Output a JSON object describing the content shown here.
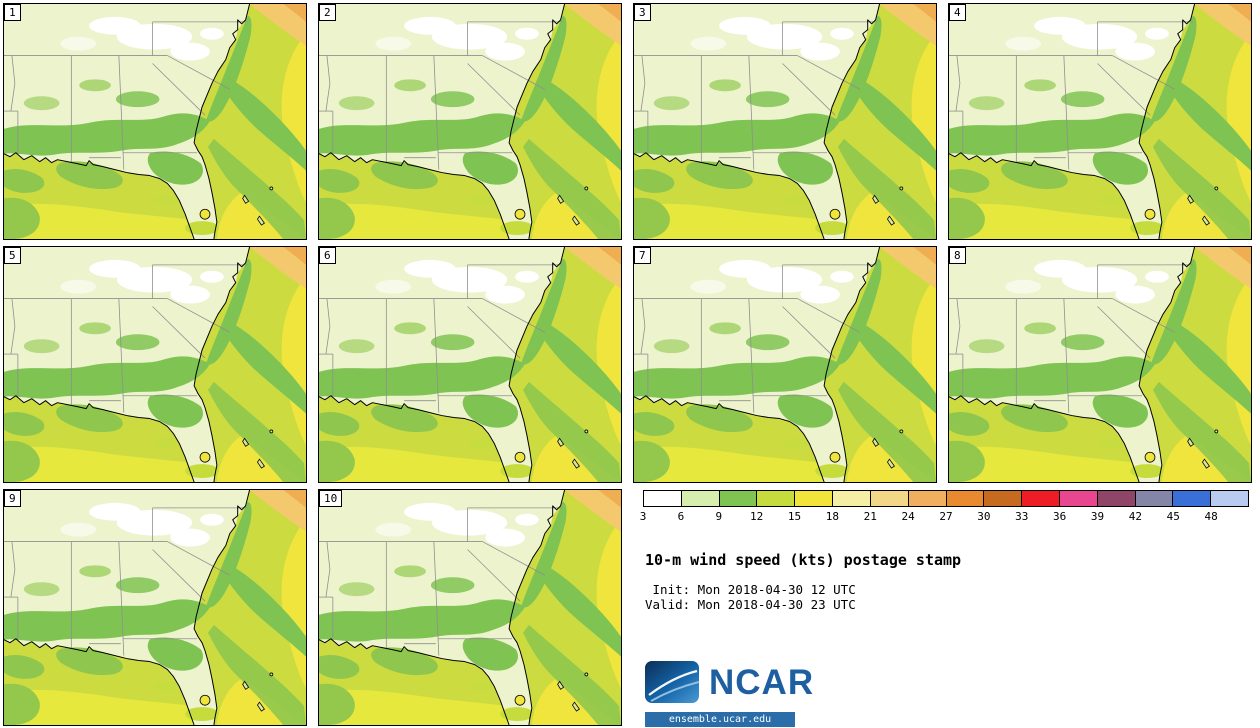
{
  "panels": [
    "1",
    "2",
    "3",
    "4",
    "5",
    "6",
    "7",
    "8",
    "9",
    "10"
  ],
  "legend": {
    "colorbar": {
      "ticks": [
        "3",
        "6",
        "9",
        "12",
        "15",
        "18",
        "21",
        "24",
        "27",
        "30",
        "33",
        "36",
        "39",
        "42",
        "45",
        "48"
      ],
      "colors": [
        "#ffffff",
        "#d6efaf",
        "#7fc353",
        "#c6dc3d",
        "#f1e53c",
        "#f5efa6",
        "#f2d788",
        "#f0af5f",
        "#ea8a30",
        "#c56a1e",
        "#ee1c25",
        "#e8468f",
        "#8e4568",
        "#8585a8",
        "#3a6fd8",
        "#b9ccf0"
      ],
      "units": "kts"
    },
    "title": "10-m wind speed (kts) postage stamp",
    "init_line": " Init: Mon 2018-04-30 12 UTC",
    "valid_line": "Valid: Mon 2018-04-30 23 UTC",
    "logo_text": "NCAR",
    "website": "ensemble.ucar.edu"
  }
}
